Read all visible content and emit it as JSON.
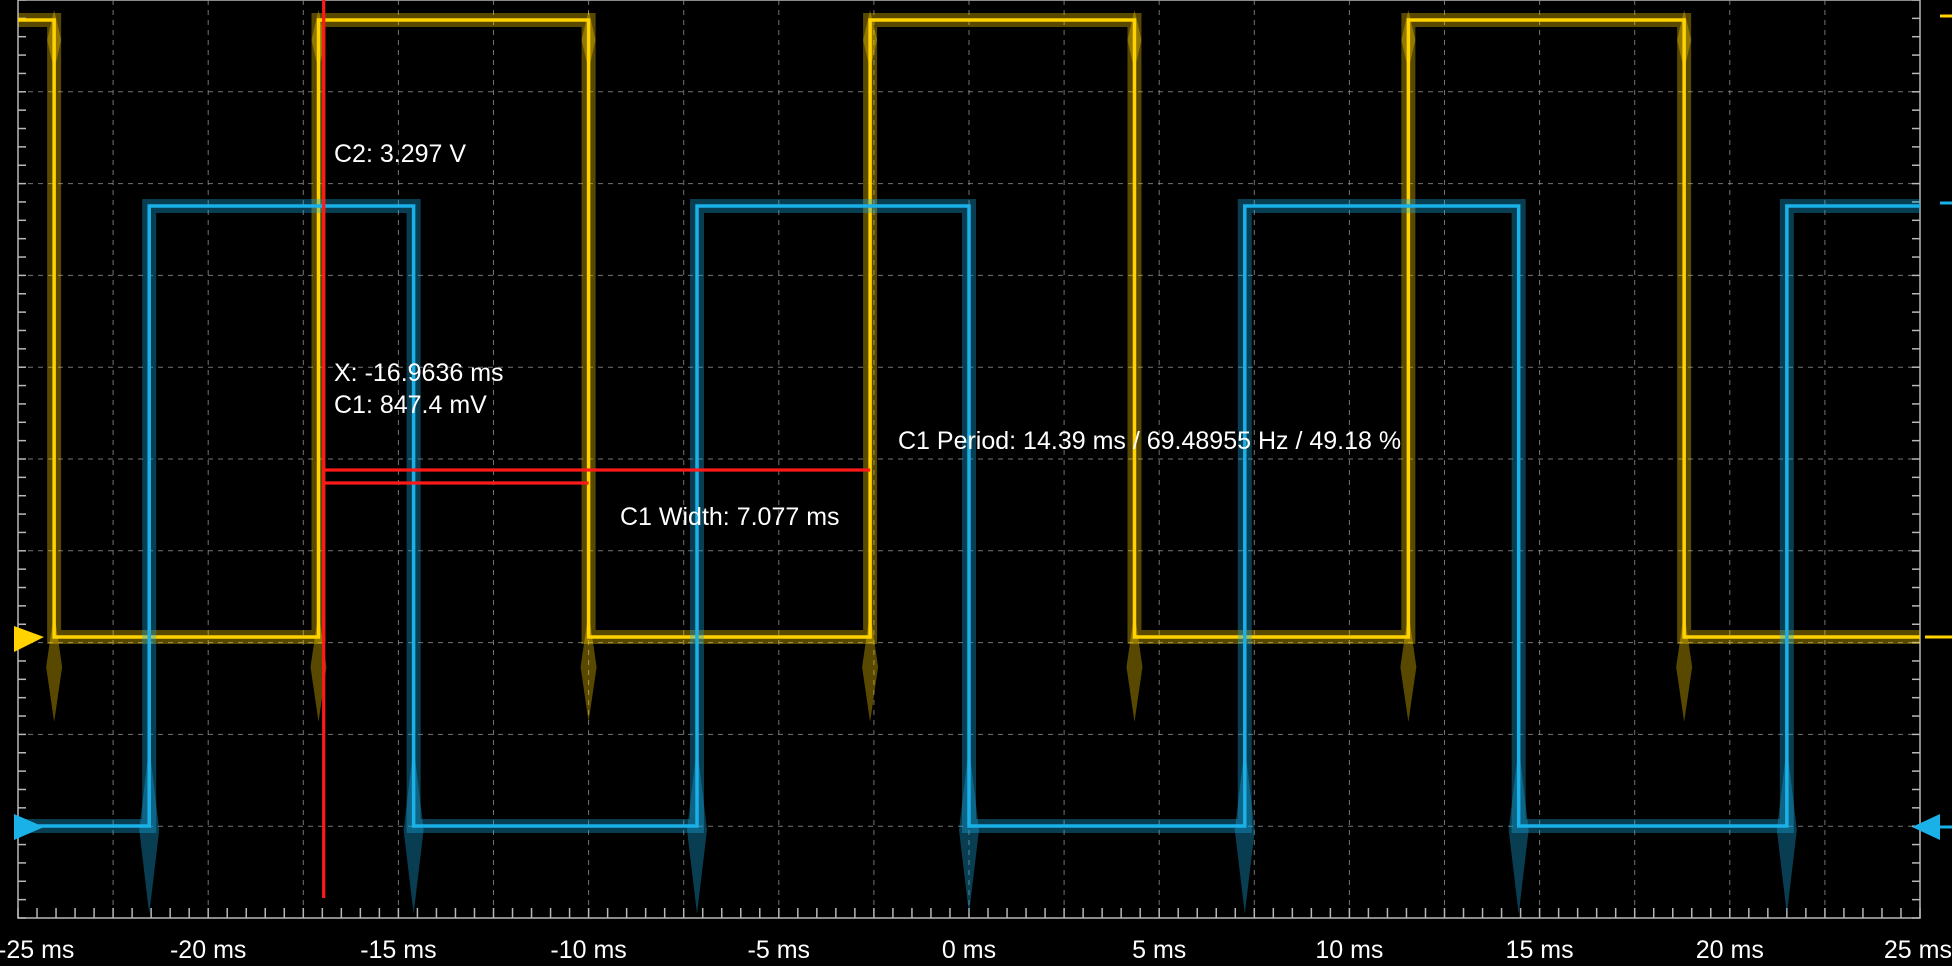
{
  "chart_data": {
    "type": "line",
    "x_unit": "ms",
    "xlim": [
      -25,
      25
    ],
    "x_ticks": [
      -25,
      -20,
      -15,
      -10,
      -5,
      0,
      5,
      10,
      15,
      20,
      25
    ],
    "tick_labels": [
      "-25 ms",
      "-20 ms",
      "-15 ms",
      "-10 ms",
      "-5 ms",
      "0 ms",
      "5 ms",
      "10 ms",
      "15 ms",
      "20 ms",
      "25 ms"
    ],
    "grid": true,
    "series": [
      {
        "color": "#ffd200",
        "low_v": 0.0,
        "high_v": 3.297,
        "edges_ms": [
          -24.05,
          -17.1,
          -10.0,
          -2.6,
          4.35,
          11.55,
          18.8
        ],
        "starts_high": true
      },
      {
        "color": "#1ab0e8",
        "low_v": 0.0,
        "high_v": 3.297,
        "edges_ms": [
          -21.55,
          -14.6,
          -7.15,
          0.0,
          7.25,
          14.45,
          21.5
        ],
        "starts_high": false
      }
    ],
    "cursors": {
      "x_ms": -16.9636,
      "c2_v": 3.297,
      "c1_v": 0.8474
    },
    "annotations": {
      "c2": "C2: 3.297 V",
      "x": "X: -16.9636 ms",
      "c1": "C1: 847.4 mV",
      "period": "C1 Period: 14.39 ms / 69.48955 Hz / 49.18 %",
      "width": "C1 Width: 7.077 ms"
    },
    "measurements": {
      "c1_period_ms": 14.39,
      "c1_frequency_hz": 69.48955,
      "c1_duty_percent": 49.18,
      "c1_width_ms": 7.077
    }
  },
  "colors": {
    "ch_yellow": "#ffd200",
    "ch_blue": "#1ab0e8",
    "cursor": "#ff1a1a",
    "background": "#000000"
  }
}
